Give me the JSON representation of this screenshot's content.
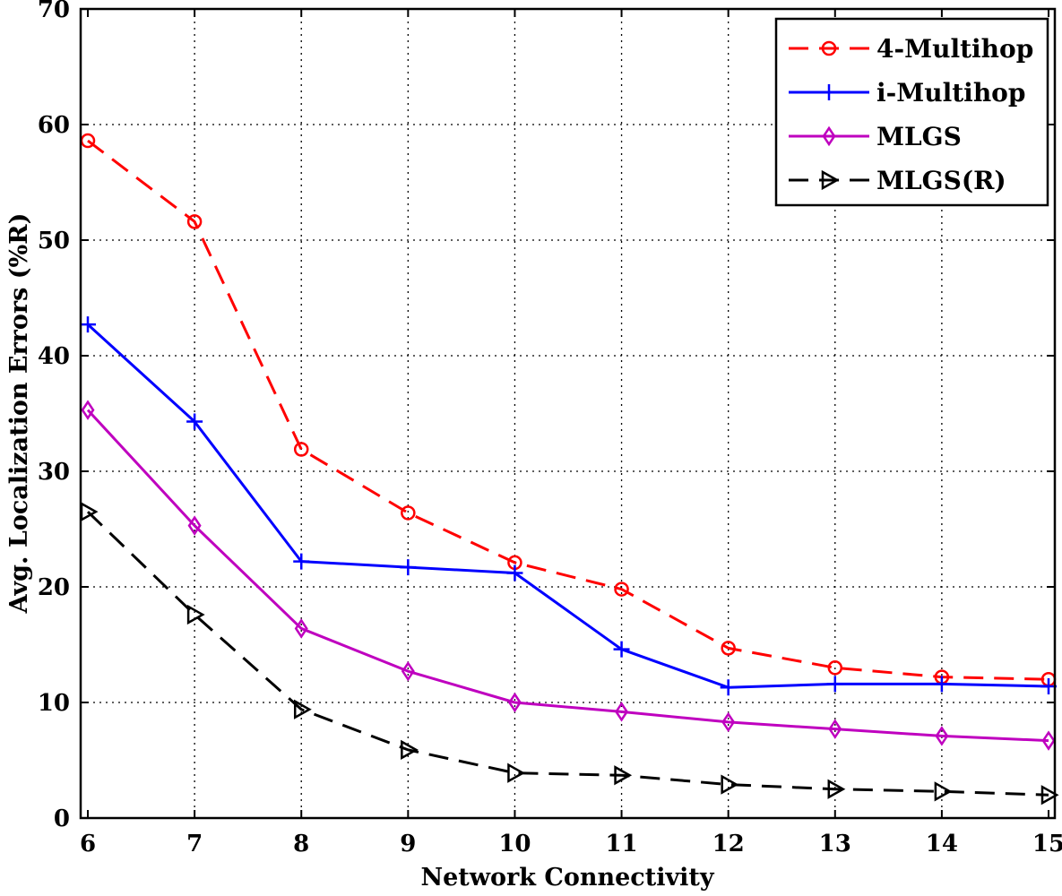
{
  "chart_data": {
    "type": "line",
    "title": "",
    "xlabel": "Network Connectivity",
    "ylabel": "Avg. Localization Errors (%R)",
    "x": [
      6,
      7,
      8,
      9,
      10,
      11,
      12,
      13,
      14,
      15
    ],
    "xlim": [
      6,
      15
    ],
    "ylim": [
      0,
      70
    ],
    "xticks": [
      6,
      7,
      8,
      9,
      10,
      11,
      12,
      13,
      14,
      15
    ],
    "yticks": [
      0,
      10,
      20,
      30,
      40,
      50,
      60,
      70
    ],
    "grid": true,
    "legend_position": "top-right",
    "series": [
      {
        "name": "4-Multihop",
        "color": "#ff0000",
        "dash": "dashed",
        "marker": "circle",
        "values": [
          58.6,
          51.6,
          31.9,
          26.4,
          22.1,
          19.8,
          14.7,
          13.0,
          12.2,
          12.0
        ]
      },
      {
        "name": "i-Multihop",
        "color": "#0000ff",
        "dash": "solid",
        "marker": "plus",
        "values": [
          42.7,
          34.3,
          22.2,
          21.7,
          21.2,
          14.6,
          11.3,
          11.6,
          11.6,
          11.4
        ]
      },
      {
        "name": "MLGS",
        "color": "#bf00bf",
        "dash": "solid",
        "marker": "diamond",
        "values": [
          35.3,
          25.3,
          16.4,
          12.7,
          10.0,
          9.2,
          8.3,
          7.7,
          7.1,
          6.7
        ]
      },
      {
        "name": "MLGS(R)",
        "color": "#000000",
        "dash": "dashed",
        "marker": "triangle-right",
        "values": [
          26.5,
          17.6,
          9.4,
          5.9,
          3.9,
          3.7,
          2.9,
          2.5,
          2.3,
          2.0
        ]
      }
    ]
  }
}
